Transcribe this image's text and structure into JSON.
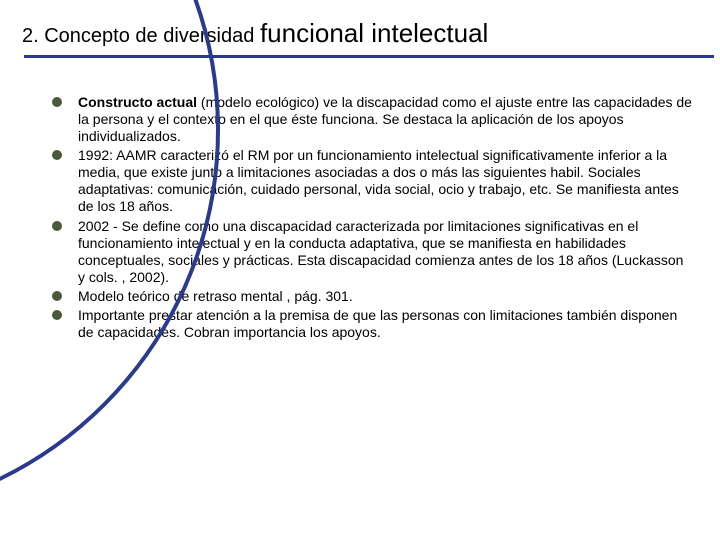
{
  "title": {
    "prefix": "2. Concepto de diversidad ",
    "main": "funcional intelectual",
    "prefix_fontsize": 20,
    "main_fontsize": 26,
    "rule_color": "#2a3b8f"
  },
  "bullets": {
    "marker_color": "#4a5a3a",
    "fontsize": 14,
    "text_color": "#000000",
    "item0_bold": "Constructo actual",
    "item0_rest": " (modelo ecológico) ve la discapacidad como el ajuste entre las capacidades de la persona y el contexto en el que éste funciona. Se destaca la aplicación de los apoyos individualizados.",
    "item1": "1992: AAMR caracterizó el RM por un funcionamiento intelectual significativamente inferior a la media, que existe junto a limitaciones asociadas a dos o más las siguientes habil. Sociales adaptativas: comunicación, cuidado personal, vida social, ocio y trabajo, etc. Se manifiesta antes de los 18 años.",
    "item2": "2002 - Se define como una discapacidad caracterizada por limitaciones significativas en el funcionamiento intelectual y en la conducta adaptativa, que se manifiesta en habilidades conceptuales, sociales y prácticas. Esta discapacidad comienza antes de los 18 años (Luckasson y cols. , 2002).",
    "item3": "Modelo teórico de retraso mental , pág. 301.",
    "item4": "Importante prestar atención a la premisa de que las personas con limitaciones también disponen de capacidades. Cobran importancia los apoyos."
  },
  "decor": {
    "arc_color": "#2a3b8f"
  },
  "background_color": "#ffffff"
}
